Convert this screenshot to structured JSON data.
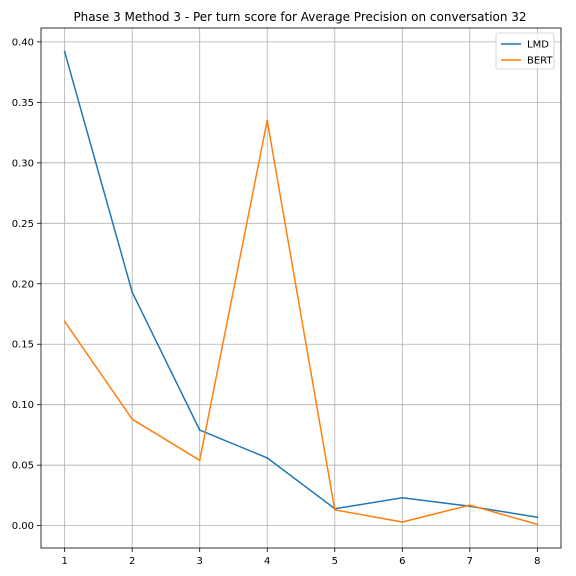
{
  "chart_data": {
    "type": "line",
    "title": "Phase 3 Method 3 - Per turn score for Average Precision on conversation 32",
    "xlabel": "",
    "ylabel": "",
    "x": [
      1,
      2,
      3,
      4,
      5,
      6,
      7,
      8
    ],
    "xlim": [
      0.65,
      8.35
    ],
    "ylim": [
      -0.0185,
      0.4115
    ],
    "xticks": [
      1,
      2,
      3,
      4,
      5,
      6,
      7,
      8
    ],
    "yticks": [
      0.0,
      0.05,
      0.1,
      0.15,
      0.2,
      0.25,
      0.3,
      0.35,
      0.4
    ],
    "ytick_labels": [
      "0.00",
      "0.05",
      "0.10",
      "0.15",
      "0.20",
      "0.25",
      "0.30",
      "0.35",
      "0.40"
    ],
    "grid": true,
    "legend_position": "top-right",
    "series": [
      {
        "name": "LMD",
        "color": "#1f77b4",
        "values": [
          0.392,
          0.193,
          0.079,
          0.056,
          0.014,
          0.023,
          0.016,
          0.007
        ]
      },
      {
        "name": "BERT",
        "color": "#ff7f0e",
        "values": [
          0.169,
          0.088,
          0.054,
          0.335,
          0.013,
          0.003,
          0.017,
          0.001
        ]
      }
    ]
  }
}
